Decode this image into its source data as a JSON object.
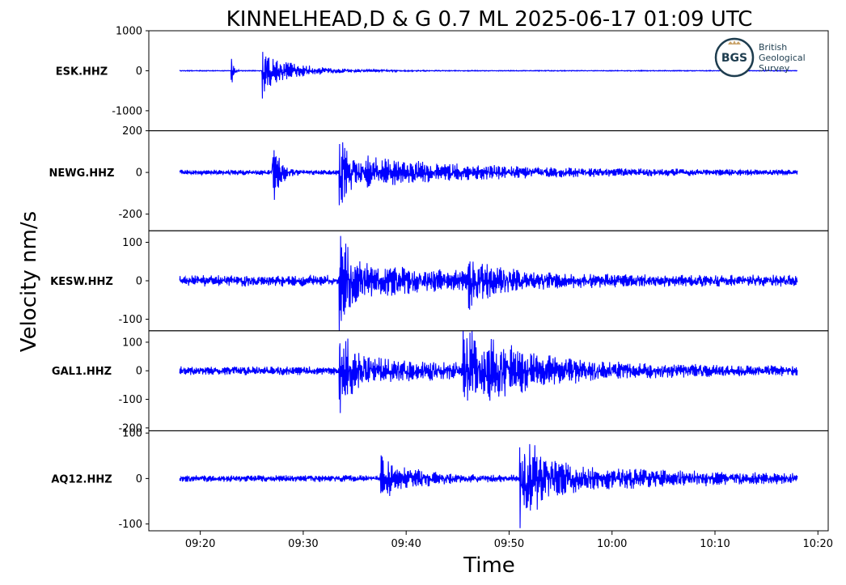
{
  "chart_data": {
    "type": "line",
    "title": "KINNELHEAD,D & G 0.7 ML   2025-06-17 01:09 UTC",
    "ylabel": "Velocity nm/s",
    "xlabel": "Time",
    "x_ticks": [
      "09:20",
      "09:30",
      "09:40",
      "09:50",
      "10:00",
      "10:10",
      "10:20"
    ],
    "x_range_minutes": [
      "09:15",
      "10:21"
    ],
    "trace_window": [
      "09:18",
      "10:18"
    ],
    "line_color": "#0000ff",
    "grid": false,
    "logo": {
      "text_lines": [
        "British",
        "Geological",
        "Survey"
      ],
      "badge": "BGS",
      "placement": "top-right"
    },
    "panels": [
      {
        "station": "ESK.HHZ",
        "yticks": [
          1000,
          0,
          -1000
        ],
        "ylim": [
          -1500,
          1000
        ],
        "noise": 8,
        "events": [
          {
            "t": "09:23",
            "amp": 400,
            "decay": 0.2
          },
          {
            "t": "09:26",
            "amp": 1050,
            "decay": 0.35
          },
          {
            "t": "09:26.5",
            "amp": 300,
            "decay": 3.5
          }
        ]
      },
      {
        "station": "NEWG.HHZ",
        "yticks": [
          200,
          0,
          -200
        ],
        "ylim": [
          -280,
          200
        ],
        "noise": 10,
        "events": [
          {
            "t": "09:27",
            "amp": 190,
            "decay": 0.6
          },
          {
            "t": "09:33.5",
            "amp": 170,
            "decay": 1.2
          },
          {
            "t": "09:36",
            "amp": 50,
            "decay": 12
          }
        ]
      },
      {
        "station": "KESW.HHZ",
        "yticks": [
          100,
          0,
          -100
        ],
        "ylim": [
          -130,
          130
        ],
        "noise": 12,
        "events": [
          {
            "t": "09:33.5",
            "amp": 120,
            "decay": 0.6
          },
          {
            "t": "09:34",
            "amp": 30,
            "decay": 10
          },
          {
            "t": "09:46",
            "amp": 45,
            "decay": 2.5
          }
        ]
      },
      {
        "station": "GAL1.HHZ",
        "yticks": [
          100,
          0,
          -100,
          -200
        ],
        "ylim": [
          -210,
          140
        ],
        "noise": 12,
        "events": [
          {
            "t": "09:33.5",
            "amp": 130,
            "decay": 0.8
          },
          {
            "t": "09:34",
            "amp": 35,
            "decay": 10
          },
          {
            "t": "09:45.5",
            "amp": 130,
            "decay": 2.5
          },
          {
            "t": "09:48",
            "amp": 40,
            "decay": 10
          }
        ]
      },
      {
        "station": "AQ12.HHZ",
        "yticks": [
          100,
          0,
          -100
        ],
        "ylim": [
          -115,
          105
        ],
        "noise": 6,
        "events": [
          {
            "t": "09:37.5",
            "amp": 35,
            "decay": 3
          },
          {
            "t": "09:51",
            "amp": 95,
            "decay": 1.3
          },
          {
            "t": "09:52",
            "amp": 25,
            "decay": 14
          }
        ]
      }
    ]
  }
}
